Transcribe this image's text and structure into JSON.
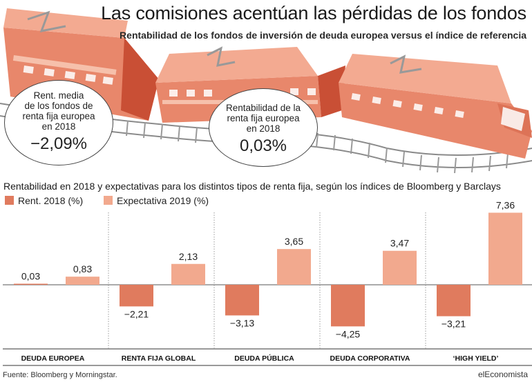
{
  "header": {
    "title": "Las comisiones acentúan las pérdidas de los fondos",
    "subtitle": "Rentabilidad de los fondos de inversión de deuda europea versus el índice de referencia"
  },
  "bubbles": [
    {
      "label": "Rent. media\nde los fondos de\nrenta fija europea\nen 2018",
      "value": "−2,09%"
    },
    {
      "label": "Rentabilidad de la\nrenta fija europea\nen 2018",
      "value": "0,03%"
    }
  ],
  "section_title": "Rentabilidad en 2018 y expectativas para los distintos tipos de renta fija, según los índices de Bloomberg y Barclays",
  "legend": {
    "rent_2018": "Rent. 2018 (%)",
    "exp_2019": "Expectativa 2019 (%)"
  },
  "colors": {
    "rent_2018": "#e07b5e",
    "exp_2019": "#f2a98e",
    "train": "#e8876b"
  },
  "icons": [
    "train-illustration"
  ],
  "chart_data": {
    "type": "bar",
    "categories": [
      "DEUDA EUROPEA",
      "RENTA FIJA GLOBAL",
      "DEUDA PÚBLICA",
      "DEUDA CORPORATIVA",
      "‘HIGH YIELD’"
    ],
    "series": [
      {
        "name": "Rent. 2018 (%)",
        "values": [
          0.03,
          -2.21,
          -3.13,
          -4.25,
          -3.21
        ],
        "labels": [
          "0,03",
          "−2,21",
          "−3,13",
          "−4,25",
          "−3,21"
        ]
      },
      {
        "name": "Expectativa 2019 (%)",
        "values": [
          0.83,
          2.13,
          3.65,
          3.47,
          7.36
        ],
        "labels": [
          "0,83",
          "2,13",
          "3,65",
          "3,47",
          "7,36"
        ]
      }
    ],
    "ylim": [
      -4.25,
      7.36
    ],
    "grid": false,
    "legend_position": "top-left"
  },
  "footer": {
    "source": "Fuente: Bloomberg y Morningstar.",
    "brand": "elEconomista"
  }
}
